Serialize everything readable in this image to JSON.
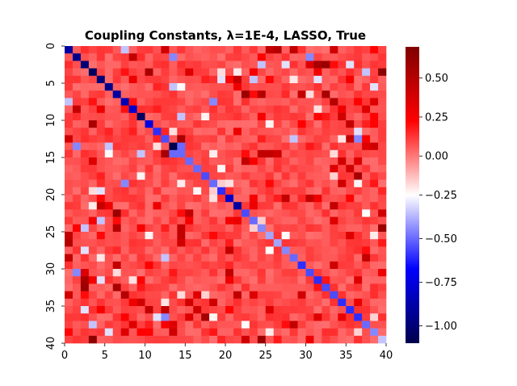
{
  "chart_data": {
    "type": "heatmap",
    "title": "Coupling Constants, λ=1E-4, LASSO, True",
    "xlabel": "",
    "ylabel": "",
    "n": 40,
    "xlim": [
      0,
      40
    ],
    "ylim": [
      40,
      0
    ],
    "x_ticks": [
      0,
      5,
      10,
      15,
      20,
      25,
      30,
      35,
      40
    ],
    "y_ticks": [
      0,
      5,
      10,
      15,
      20,
      25,
      30,
      35,
      40
    ],
    "colorbar": {
      "vmin": -1.1,
      "vmax": 0.7,
      "center": -0.25,
      "ticks": [
        0.5,
        0.25,
        0.0,
        -0.25,
        -0.5,
        -0.75,
        -1.0
      ],
      "tick_labels": [
        "0.50",
        "0.25",
        "0.00",
        "−0.25",
        "−0.50",
        "−0.75",
        "−1.00"
      ],
      "colormap": "seismic"
    },
    "diagonal_values": [
      -0.9,
      -0.95,
      -1.0,
      -1.05,
      -1.0,
      -0.95,
      -0.9,
      -0.85,
      -0.8,
      -1.05,
      -0.75,
      -0.6,
      -0.55,
      -1.1,
      -0.5,
      -0.5,
      -0.5,
      -0.55,
      -0.5,
      -0.6,
      -0.8,
      -0.9,
      -0.55,
      -0.5,
      -0.45,
      -0.4,
      -0.4,
      -0.45,
      -0.5,
      -0.6,
      -0.55,
      -0.6,
      -0.55,
      -0.55,
      -0.6,
      -0.6,
      -0.6,
      -0.5,
      -0.45,
      -0.35
    ],
    "background_value": 0.08,
    "strong_couplings": [
      {
        "i": 0,
        "j": 12,
        "v": 0.4
      },
      {
        "i": 0,
        "j": 25,
        "v": 0.45
      },
      {
        "i": 0,
        "j": 26,
        "v": 0.5
      },
      {
        "i": 0,
        "j": 28,
        "v": 0.45
      },
      {
        "i": 0,
        "j": 33,
        "v": 0.4
      },
      {
        "i": 0,
        "j": 7,
        "v": -0.35
      },
      {
        "i": 1,
        "j": 8,
        "v": 0.45
      },
      {
        "i": 1,
        "j": 13,
        "v": -0.45
      },
      {
        "i": 1,
        "j": 30,
        "v": -0.45
      },
      {
        "i": 2,
        "j": 30,
        "v": 0.35
      },
      {
        "i": 2,
        "j": 31,
        "v": 0.55
      },
      {
        "i": 2,
        "j": 32,
        "v": 0.6
      },
      {
        "i": 2,
        "j": 24,
        "v": -0.35
      },
      {
        "i": 2,
        "j": 27,
        "v": -0.3
      },
      {
        "i": 2,
        "j": 35,
        "v": -0.3
      },
      {
        "i": 3,
        "j": 10,
        "v": 0.55
      },
      {
        "i": 3,
        "j": 39,
        "v": 0.65
      },
      {
        "i": 3,
        "j": 37,
        "v": -0.35
      },
      {
        "i": 3,
        "j": 15,
        "v": 0.35
      },
      {
        "i": 4,
        "j": 21,
        "v": 0.45
      },
      {
        "i": 4,
        "j": 19,
        "v": -0.3
      },
      {
        "i": 4,
        "j": 23,
        "v": -0.35
      },
      {
        "i": 4,
        "j": 31,
        "v": -0.3
      },
      {
        "i": 5,
        "j": 13,
        "v": -0.35
      },
      {
        "i": 5,
        "j": 38,
        "v": -0.3
      },
      {
        "i": 6,
        "j": 22,
        "v": 0.6
      },
      {
        "i": 6,
        "j": 24,
        "v": 0.5
      },
      {
        "i": 6,
        "j": 29,
        "v": 0.45
      },
      {
        "i": 6,
        "j": 32,
        "v": 0.55
      },
      {
        "i": 7,
        "j": 18,
        "v": -0.45
      },
      {
        "i": 7,
        "j": 33,
        "v": 0.5
      },
      {
        "i": 7,
        "j": 38,
        "v": 0.35
      },
      {
        "i": 8,
        "j": 37,
        "v": 0.35
      },
      {
        "i": 9,
        "j": 14,
        "v": -0.35
      },
      {
        "i": 9,
        "j": 34,
        "v": 0.4
      },
      {
        "i": 10,
        "j": 35,
        "v": 0.45
      },
      {
        "i": 11,
        "j": 36,
        "v": -0.3
      },
      {
        "i": 12,
        "j": 14,
        "v": 0.55
      },
      {
        "i": 12,
        "j": 28,
        "v": -0.35
      },
      {
        "i": 12,
        "j": 35,
        "v": 0.45
      },
      {
        "i": 12,
        "j": 36,
        "v": -0.45
      },
      {
        "i": 13,
        "j": 14,
        "v": -0.5
      },
      {
        "i": 13,
        "j": 37,
        "v": 0.35
      },
      {
        "i": 13,
        "j": 38,
        "v": 0.4
      },
      {
        "i": 14,
        "j": 24,
        "v": 0.45
      },
      {
        "i": 14,
        "j": 25,
        "v": 0.45
      },
      {
        "i": 14,
        "j": 26,
        "v": 0.4
      },
      {
        "i": 15,
        "j": 22,
        "v": 0.45
      },
      {
        "i": 15,
        "j": 34,
        "v": 0.4
      },
      {
        "i": 15,
        "j": 36,
        "v": 0.35
      },
      {
        "i": 16,
        "j": 33,
        "v": 0.35
      },
      {
        "i": 16,
        "j": 35,
        "v": 0.4
      },
      {
        "i": 17,
        "j": 36,
        "v": 0.55
      },
      {
        "i": 18,
        "j": 34,
        "v": 0.4
      },
      {
        "i": 20,
        "j": 27,
        "v": 0.45
      },
      {
        "i": 20,
        "j": 30,
        "v": 0.45
      },
      {
        "i": 21,
        "j": 33,
        "v": 0.45
      },
      {
        "i": 22,
        "j": 39,
        "v": 0.4
      },
      {
        "i": 23,
        "j": 33,
        "v": 0.35
      },
      {
        "i": 24,
        "j": 39,
        "v": 0.6
      },
      {
        "i": 25,
        "j": 35,
        "v": 0.35
      },
      {
        "i": 28,
        "j": 37,
        "v": 0.45
      },
      {
        "i": 29,
        "j": 33,
        "v": 0.4
      },
      {
        "i": 31,
        "j": 36,
        "v": 0.35
      },
      {
        "i": 34,
        "j": 36,
        "v": 0.3
      }
    ]
  }
}
